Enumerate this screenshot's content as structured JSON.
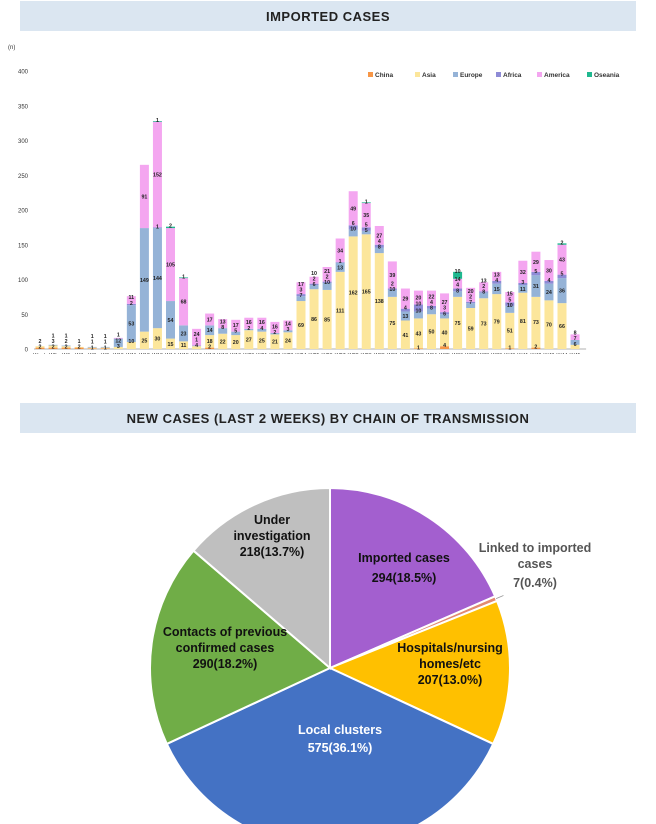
{
  "sections": {
    "imported_title": "IMPORTED CASES",
    "transmission_title": "NEW CASES (LAST 2 WEEKS) BY CHAIN OF TRANSMISSION"
  },
  "chart_data": [
    {
      "type": "bar",
      "stacked": true,
      "title": "IMPORTED CASES",
      "ylabel": "(n)",
      "xlabel": "",
      "ylim": [
        0,
        400
      ],
      "yticks": [
        0,
        50,
        100,
        150,
        200,
        250,
        300,
        350,
        400
      ],
      "grid": false,
      "legend_position": "top-right",
      "categories": [
        "Week 4",
        "W5",
        "W6",
        "W7",
        "W8",
        "W9",
        "W10",
        "W11",
        "W12",
        "W13",
        "W14",
        "W15",
        "W16",
        "W17",
        "W18",
        "W19",
        "W20",
        "W21",
        "W22",
        "W23",
        "W24",
        "W25",
        "W26",
        "W27",
        "W28",
        "W29",
        "W30",
        "W31",
        "W32",
        "W33",
        "W34",
        "W35",
        "W36",
        "W37",
        "W38",
        "W39",
        "W40",
        "W41",
        "W42",
        "W43",
        "W44",
        "W45"
      ],
      "series": [
        {
          "name": "China",
          "color": "#f79646",
          "values": [
            2,
            2,
            2,
            2,
            1,
            1,
            0,
            0,
            0,
            0,
            0,
            0,
            0,
            2,
            0,
            0,
            0,
            0,
            0,
            0,
            0,
            0,
            0,
            0,
            0,
            0,
            0,
            0,
            0,
            1,
            0,
            4,
            0,
            0,
            0,
            0,
            1,
            0,
            2,
            0,
            0,
            0
          ]
        },
        {
          "name": "Asia",
          "color": "#fce69b",
          "values": [
            2,
            3,
            2,
            1,
            1,
            1,
            3,
            10,
            25,
            30,
            15,
            11,
            4,
            18,
            22,
            20,
            27,
            25,
            21,
            24,
            69,
            86,
            85,
            111,
            162,
            165,
            138,
            75,
            41,
            43,
            50,
            40,
            75,
            59,
            73,
            79,
            51,
            81,
            73,
            70,
            66,
            6
          ]
        },
        {
          "name": "Europe",
          "color": "#95b3d7",
          "values": [
            0,
            1,
            1,
            0,
            1,
            1,
            12,
            53,
            149,
            144,
            54,
            23,
            1,
            14,
            8,
            5,
            2,
            4,
            2,
            3,
            7,
            6,
            10,
            13,
            10,
            5,
            8,
            10,
            13,
            10,
            8,
            6,
            8,
            7,
            8,
            15,
            10,
            11,
            31,
            24,
            36,
            7
          ]
        },
        {
          "name": "Africa",
          "color": "#8e8bd6",
          "values": [
            0,
            0,
            0,
            0,
            0,
            0,
            0,
            2,
            0,
            1,
            0,
            0,
            0,
            0,
            0,
            0,
            0,
            0,
            0,
            0,
            3,
            2,
            2,
            1,
            6,
            5,
            4,
            2,
            4,
            10,
            4,
            3,
            4,
            2,
            2,
            4,
            5,
            3,
            5,
            4,
            5,
            0
          ]
        },
        {
          "name": "America",
          "color": "#f4a6f0",
          "values": [
            0,
            0,
            0,
            0,
            0,
            0,
            1,
            11,
            91,
            152,
            105,
            68,
            24,
            17,
            13,
            17,
            16,
            16,
            16,
            14,
            17,
            10,
            21,
            34,
            49,
            35,
            27,
            39,
            29,
            20,
            22,
            27,
            14,
            20,
            13,
            13,
            15,
            32,
            29,
            30,
            43,
            8
          ]
        },
        {
          "name": "Oseania",
          "color": "#1fb88f",
          "values": [
            0,
            0,
            0,
            0,
            0,
            0,
            0,
            0,
            0,
            1,
            2,
            1,
            0,
            0,
            0,
            0,
            0,
            0,
            0,
            0,
            0,
            0,
            0,
            0,
            0,
            1,
            0,
            0,
            0,
            0,
            0,
            0,
            10,
            0,
            0,
            0,
            0,
            0,
            0,
            0,
            2,
            0
          ]
        }
      ]
    },
    {
      "type": "pie",
      "title": "NEW CASES (LAST 2 WEEKS) BY CHAIN OF TRANSMISSION",
      "slices": [
        {
          "label": "Imported cases",
          "value": 294,
          "text": "294(18.5%)",
          "color": "#a35fcf",
          "label_color": "#111111"
        },
        {
          "label": "Linked to imported cases",
          "value": 7,
          "text": "7(0.4%)",
          "color": "#e28a70",
          "label_color": "#555555"
        },
        {
          "label": "Hospitals/nursing homes/etc",
          "value": 207,
          "text": "207(13.0%)",
          "color": "#ffc000",
          "label_color": "#111111"
        },
        {
          "label": "Local clusters",
          "value": 575,
          "text": "575(36.1%)",
          "color": "#4472c4",
          "label_color": "#ffffff"
        },
        {
          "label": "Contacts of previous confirmed cases",
          "value": 290,
          "text": "290(18.2%)",
          "color": "#70ad47",
          "label_color": "#111111"
        },
        {
          "label": "Under investigation",
          "value": 218,
          "text": "218(13.7%)",
          "color": "#bfbfbf",
          "label_color": "#111111"
        }
      ]
    }
  ]
}
